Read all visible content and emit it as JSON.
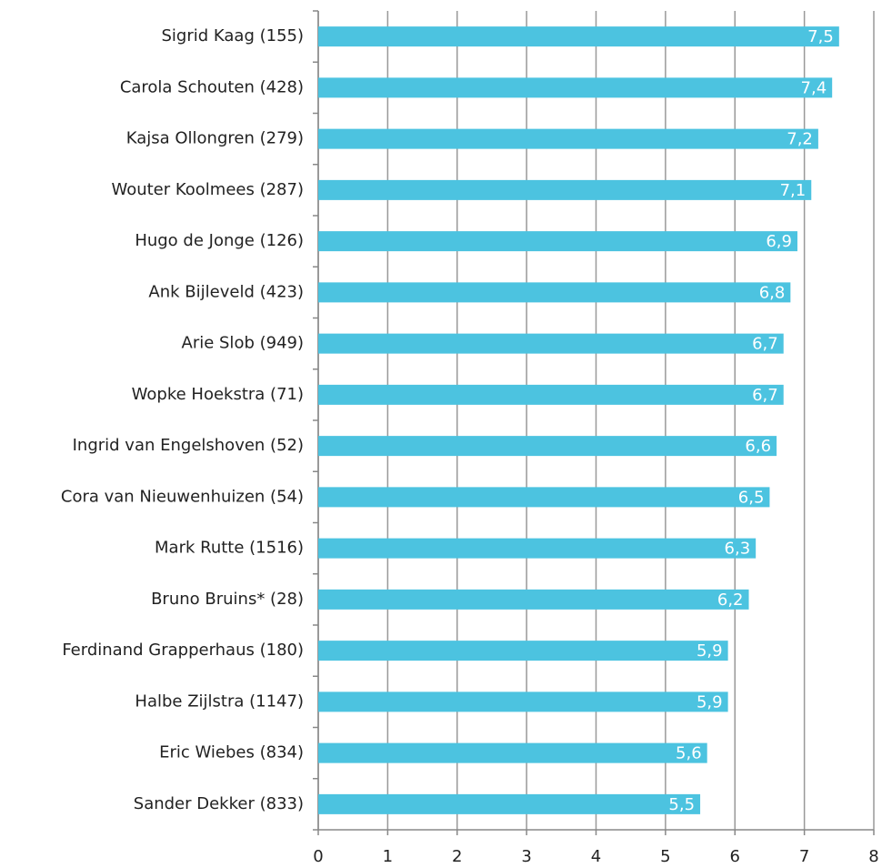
{
  "chart_data": {
    "type": "hbar",
    "categories": [
      "Sigrid Kaag (155)",
      "Carola Schouten (428)",
      "Kajsa Ollongren (279)",
      "Wouter Koolmees (287)",
      "Hugo de Jonge (126)",
      "Ank Bijleveld (423)",
      "Arie Slob (949)",
      "Wopke Hoekstra (71)",
      "Ingrid van Engelshoven (52)",
      "Cora van Nieuwenhuizen (54)",
      "Mark Rutte (1516)",
      "Bruno Bruins* (28)",
      "Ferdinand Grapperhaus (180)",
      "Halbe Zijlstra (1147)",
      "Eric Wiebes (834)",
      "Sander Dekker (833)"
    ],
    "values": [
      7.5,
      7.4,
      7.2,
      7.1,
      6.9,
      6.8,
      6.7,
      6.7,
      6.6,
      6.5,
      6.3,
      6.2,
      5.9,
      5.9,
      5.6,
      5.5
    ],
    "value_labels": [
      "7,5",
      "7,4",
      "7,2",
      "7,1",
      "6,9",
      "6,8",
      "6,7",
      "6,7",
      "6,6",
      "6,5",
      "6,3",
      "6,2",
      "5,9",
      "5,9",
      "5,6",
      "5,5"
    ],
    "color": "#4cc3e0",
    "xlim": [
      0,
      8
    ],
    "xticks": [
      0,
      1,
      2,
      3,
      4,
      5,
      6,
      7,
      8
    ],
    "grid": true
  }
}
